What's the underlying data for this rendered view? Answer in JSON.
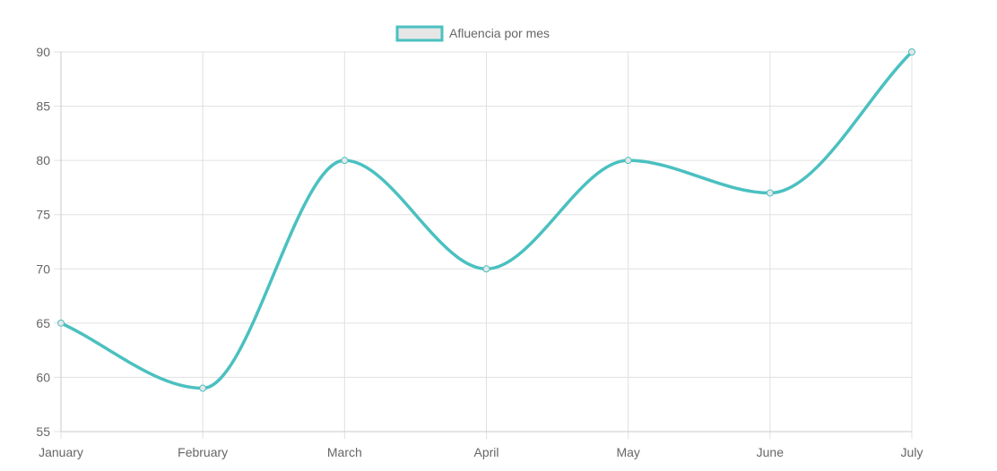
{
  "chart_data": {
    "type": "line",
    "categories": [
      "January",
      "February",
      "March",
      "April",
      "May",
      "June",
      "July"
    ],
    "series": [
      {
        "name": "Afluencia por mes",
        "values": [
          65,
          59,
          80,
          70,
          80,
          77,
          90
        ]
      }
    ],
    "ylim": [
      55,
      90
    ],
    "yticks": [
      "90",
      "85",
      "80",
      "75",
      "70",
      "65",
      "60",
      "55"
    ],
    "grid": true,
    "legend_position": "top-center",
    "colors": {
      "line": "#4BC0C0",
      "legend_fill": "#E6E6E6",
      "grid": "#E0E0E0",
      "axis": "#C8C8C8"
    }
  }
}
